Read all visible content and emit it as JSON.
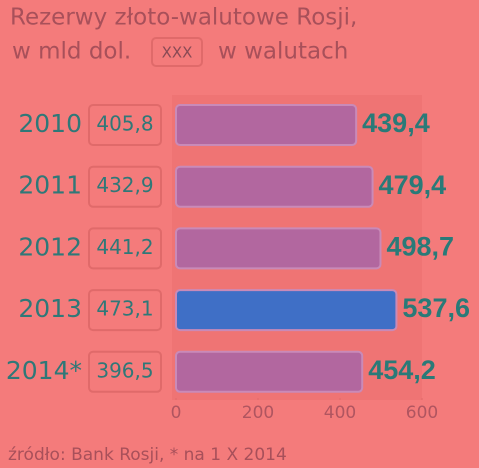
{
  "chart_data": {
    "type": "bar",
    "orientation": "horizontal",
    "title": "Rezerwy złoto-walutowe Rosji,",
    "subtitle": "w mld dol.",
    "legend": {
      "key": "XXX",
      "label": "w walutach"
    },
    "categories": [
      "2010",
      "2011",
      "2012",
      "2013",
      "2014*"
    ],
    "values": [
      439.4,
      479.4,
      498.7,
      537.6,
      454.2
    ],
    "value_labels": [
      "439,4",
      "479,4",
      "498,7",
      "537,6",
      "454,2"
    ],
    "currency_values": [
      405.8,
      432.9,
      441.2,
      473.1,
      396.5
    ],
    "currency_value_labels": [
      "405,8",
      "432,9",
      "441,2",
      "473,1",
      "396,5"
    ],
    "colors": [
      "#b2679f",
      "#b2679f",
      "#b2679f",
      "#3f6fc6",
      "#b2679f"
    ],
    "xlim": [
      0,
      600
    ],
    "xticks": [
      0,
      200,
      400,
      600
    ],
    "note": "źródło: Bank Rosji, * na 1 X 2014"
  }
}
